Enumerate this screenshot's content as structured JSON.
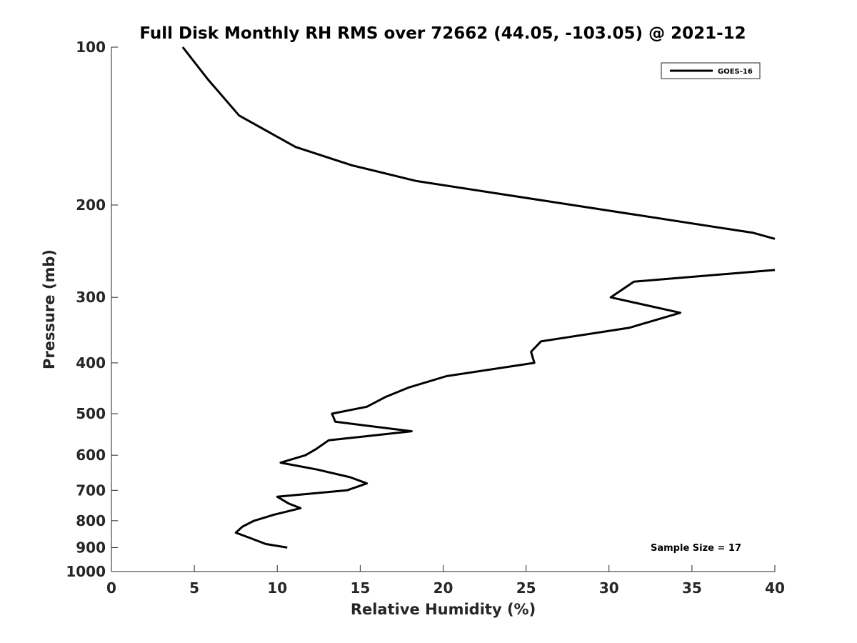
{
  "chart_data": {
    "type": "line",
    "title": "Full Disk Monthly RH RMS over 72662 (44.05, -103.05) @ 2021-12",
    "xlabel": "Relative Humidity (%)",
    "ylabel": "Pressure (mb)",
    "xlim": [
      0,
      40
    ],
    "ylim": [
      100,
      1000
    ],
    "y_scale": "log",
    "y_reversed": true,
    "x_ticks": [
      "0",
      "5",
      "10",
      "15",
      "20",
      "25",
      "30",
      "35",
      "40"
    ],
    "y_ticks": [
      "100",
      "200",
      "300",
      "400",
      "500",
      "600",
      "700",
      "800",
      "900",
      "1000"
    ],
    "grid": false,
    "legend_position": "top-right",
    "annotation": "Sample Size = 17",
    "series": [
      {
        "name": "GOES-16",
        "color": "#000000",
        "points": [
          [
            4.3,
            100
          ],
          [
            5.8,
            115
          ],
          [
            7.7,
            135
          ],
          [
            11.1,
            155
          ],
          [
            14.5,
            168
          ],
          [
            18.4,
            180
          ],
          [
            27.8,
            200
          ],
          [
            38.7,
            226
          ],
          [
            40.0,
            232
          ],
          [
            null,
            250
          ],
          [
            40.0,
            266
          ],
          [
            31.5,
            280
          ],
          [
            30.1,
            300
          ],
          [
            34.3,
            321
          ],
          [
            31.2,
            343
          ],
          [
            25.9,
            364
          ],
          [
            25.3,
            381
          ],
          [
            25.5,
            400
          ],
          [
            20.2,
            424
          ],
          [
            17.9,
            446
          ],
          [
            16.5,
            465
          ],
          [
            15.4,
            485
          ],
          [
            13.3,
            500
          ],
          [
            13.5,
            518
          ],
          [
            18.1,
            540
          ],
          [
            13.1,
            562
          ],
          [
            12.3,
            585
          ],
          [
            11.7,
            600
          ],
          [
            10.2,
            620
          ],
          [
            12.4,
            639
          ],
          [
            14.4,
            661
          ],
          [
            15.4,
            679
          ],
          [
            14.2,
            700
          ],
          [
            10.0,
            720
          ],
          [
            10.7,
            742
          ],
          [
            11.4,
            757
          ],
          [
            9.8,
            779
          ],
          [
            8.6,
            800
          ],
          [
            7.9,
            821
          ],
          [
            7.5,
            843
          ],
          [
            8.4,
            864
          ],
          [
            9.3,
            886
          ],
          [
            10.6,
            900
          ]
        ]
      }
    ]
  }
}
